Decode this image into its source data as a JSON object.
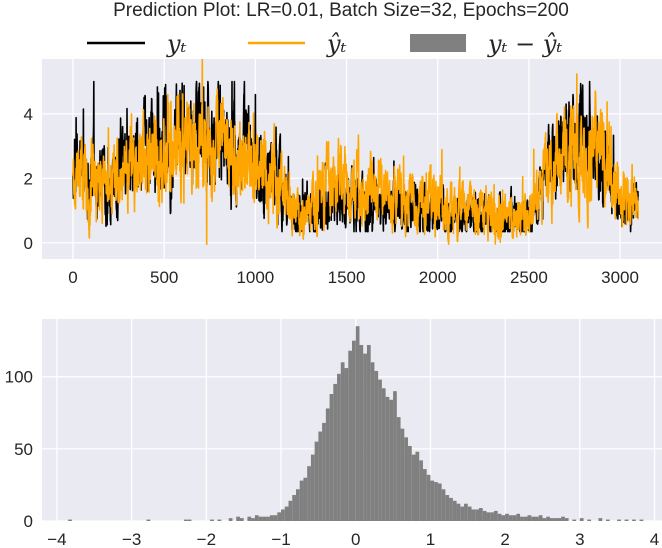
{
  "title": "Prediction Plot: LR=0.01, Batch Size=32, Epochs=200",
  "legend": [
    {
      "label": "yₜ",
      "kind": "line",
      "color": "#000000"
    },
    {
      "label": "ŷₜ",
      "kind": "line",
      "color": "#FFA500"
    },
    {
      "label": "yₜ − ŷₜ",
      "kind": "patch",
      "color": "#808080"
    }
  ],
  "colors": {
    "background": "#EAEAF2",
    "grid": "#FFFFFF",
    "actual": "#000000",
    "predicted": "#FFA500",
    "hist": "#808080"
  },
  "chart_data": [
    {
      "type": "line",
      "legend_position": "above plot",
      "grid": true,
      "xlim": [
        -170,
        3230
      ],
      "ylim": [
        -0.5,
        5.7
      ],
      "x_ticks": [
        0,
        500,
        1000,
        1500,
        2000,
        2500,
        3000
      ],
      "y_ticks": [
        0,
        2,
        4
      ],
      "x_tick_labels": [
        "0",
        "500",
        "1000",
        "1500",
        "2000",
        "2500",
        "3000"
      ],
      "y_tick_labels": [
        "0",
        "2",
        "4"
      ],
      "n_points": 3100,
      "series": [
        {
          "name": "yₜ",
          "color": "#000000",
          "level_profile": {
            "x": [
              0,
              100,
              200,
              300,
              400,
              500,
              600,
              700,
              800,
              900,
              1000,
              1100,
              1200,
              1300,
              1400,
              1500,
              1600,
              1700,
              1800,
              1900,
              2000,
              2100,
              2200,
              2300,
              2400,
              2500,
              2600,
              2700,
              2800,
              2900,
              3000,
              3090
            ],
            "y": [
              2.2,
              2.3,
              2.0,
              2.2,
              2.5,
              3.5,
              3.6,
              3.4,
              3.2,
              3.0,
              2.6,
              2.3,
              1.1,
              1.0,
              1.4,
              1.3,
              1.3,
              1.2,
              1.1,
              1.0,
              0.9,
              0.8,
              0.8,
              0.7,
              0.8,
              0.8,
              2.0,
              3.2,
              3.0,
              2.6,
              1.0,
              1.0
            ]
          }
        },
        {
          "name": "ŷₜ",
          "color": "#FFA500",
          "level_profile": {
            "x": [
              0,
              100,
              200,
              300,
              400,
              500,
              600,
              700,
              800,
              900,
              1000,
              1100,
              1200,
              1300,
              1400,
              1500,
              1600,
              1700,
              1800,
              1900,
              2000,
              2100,
              2200,
              2300,
              2400,
              2500,
              2600,
              2700,
              2800,
              2900,
              3000,
              3090
            ],
            "y": [
              2.0,
              2.2,
              1.9,
              2.1,
              2.4,
              3.0,
              3.1,
              3.0,
              2.9,
              2.7,
              2.3,
              2.1,
              1.0,
              0.8,
              1.9,
              1.8,
              1.7,
              1.5,
              1.4,
              1.4,
              1.2,
              1.2,
              1.0,
              0.9,
              0.8,
              0.8,
              1.9,
              2.8,
              2.9,
              2.8,
              1.2,
              1.1
            ]
          }
        }
      ]
    },
    {
      "type": "bar",
      "subtype": "histogram",
      "color": "#808080",
      "grid": true,
      "xlim": [
        -4.2,
        4.1
      ],
      "ylim": [
        0,
        140
      ],
      "x_ticks": [
        -4,
        -3,
        -2,
        -1,
        0,
        1,
        2,
        3,
        4
      ],
      "y_ticks": [
        0,
        50,
        100
      ],
      "x_tick_labels": [
        "−4",
        "−3",
        "−2",
        "−1",
        "0",
        "1",
        "2",
        "3",
        "4"
      ],
      "y_tick_labels": [
        "0",
        "50",
        "100"
      ],
      "bin_width": 0.05,
      "bin_start": -1.2,
      "counts": [
        3,
        4,
        4,
        6,
        8,
        10,
        14,
        18,
        22,
        28,
        30,
        38,
        46,
        55,
        62,
        68,
        78,
        88,
        95,
        102,
        110,
        106,
        118,
        125,
        135,
        122,
        116,
        122,
        110,
        104,
        98,
        92,
        86,
        84,
        90,
        72,
        64,
        58,
        52,
        46,
        48,
        42,
        36,
        32,
        28,
        27,
        26,
        22,
        18,
        16,
        14,
        12,
        10,
        12,
        10,
        8,
        8,
        9,
        7,
        6,
        6,
        7,
        5,
        4,
        5,
        4,
        4,
        5,
        3,
        3,
        4,
        3,
        3,
        4,
        2,
        3,
        2,
        2,
        2,
        3
      ],
      "tail_bins": [
        [
          -3.85,
          1
        ],
        [
          -2.8,
          1
        ],
        [
          -2.3,
          1
        ],
        [
          -2.25,
          1
        ],
        [
          -1.95,
          1
        ],
        [
          -1.85,
          1
        ],
        [
          -1.7,
          2
        ],
        [
          -1.6,
          3
        ],
        [
          -1.55,
          2
        ],
        [
          -1.45,
          3
        ],
        [
          -1.4,
          2
        ],
        [
          -1.35,
          4
        ],
        [
          -1.3,
          3
        ],
        [
          -1.25,
          3
        ],
        [
          2.8,
          2
        ],
        [
          2.9,
          1
        ],
        [
          3.0,
          2
        ],
        [
          3.1,
          1
        ],
        [
          3.25,
          2
        ],
        [
          3.35,
          1
        ],
        [
          3.5,
          1
        ],
        [
          3.6,
          1
        ],
        [
          3.7,
          1
        ],
        [
          3.8,
          1
        ]
      ]
    }
  ]
}
